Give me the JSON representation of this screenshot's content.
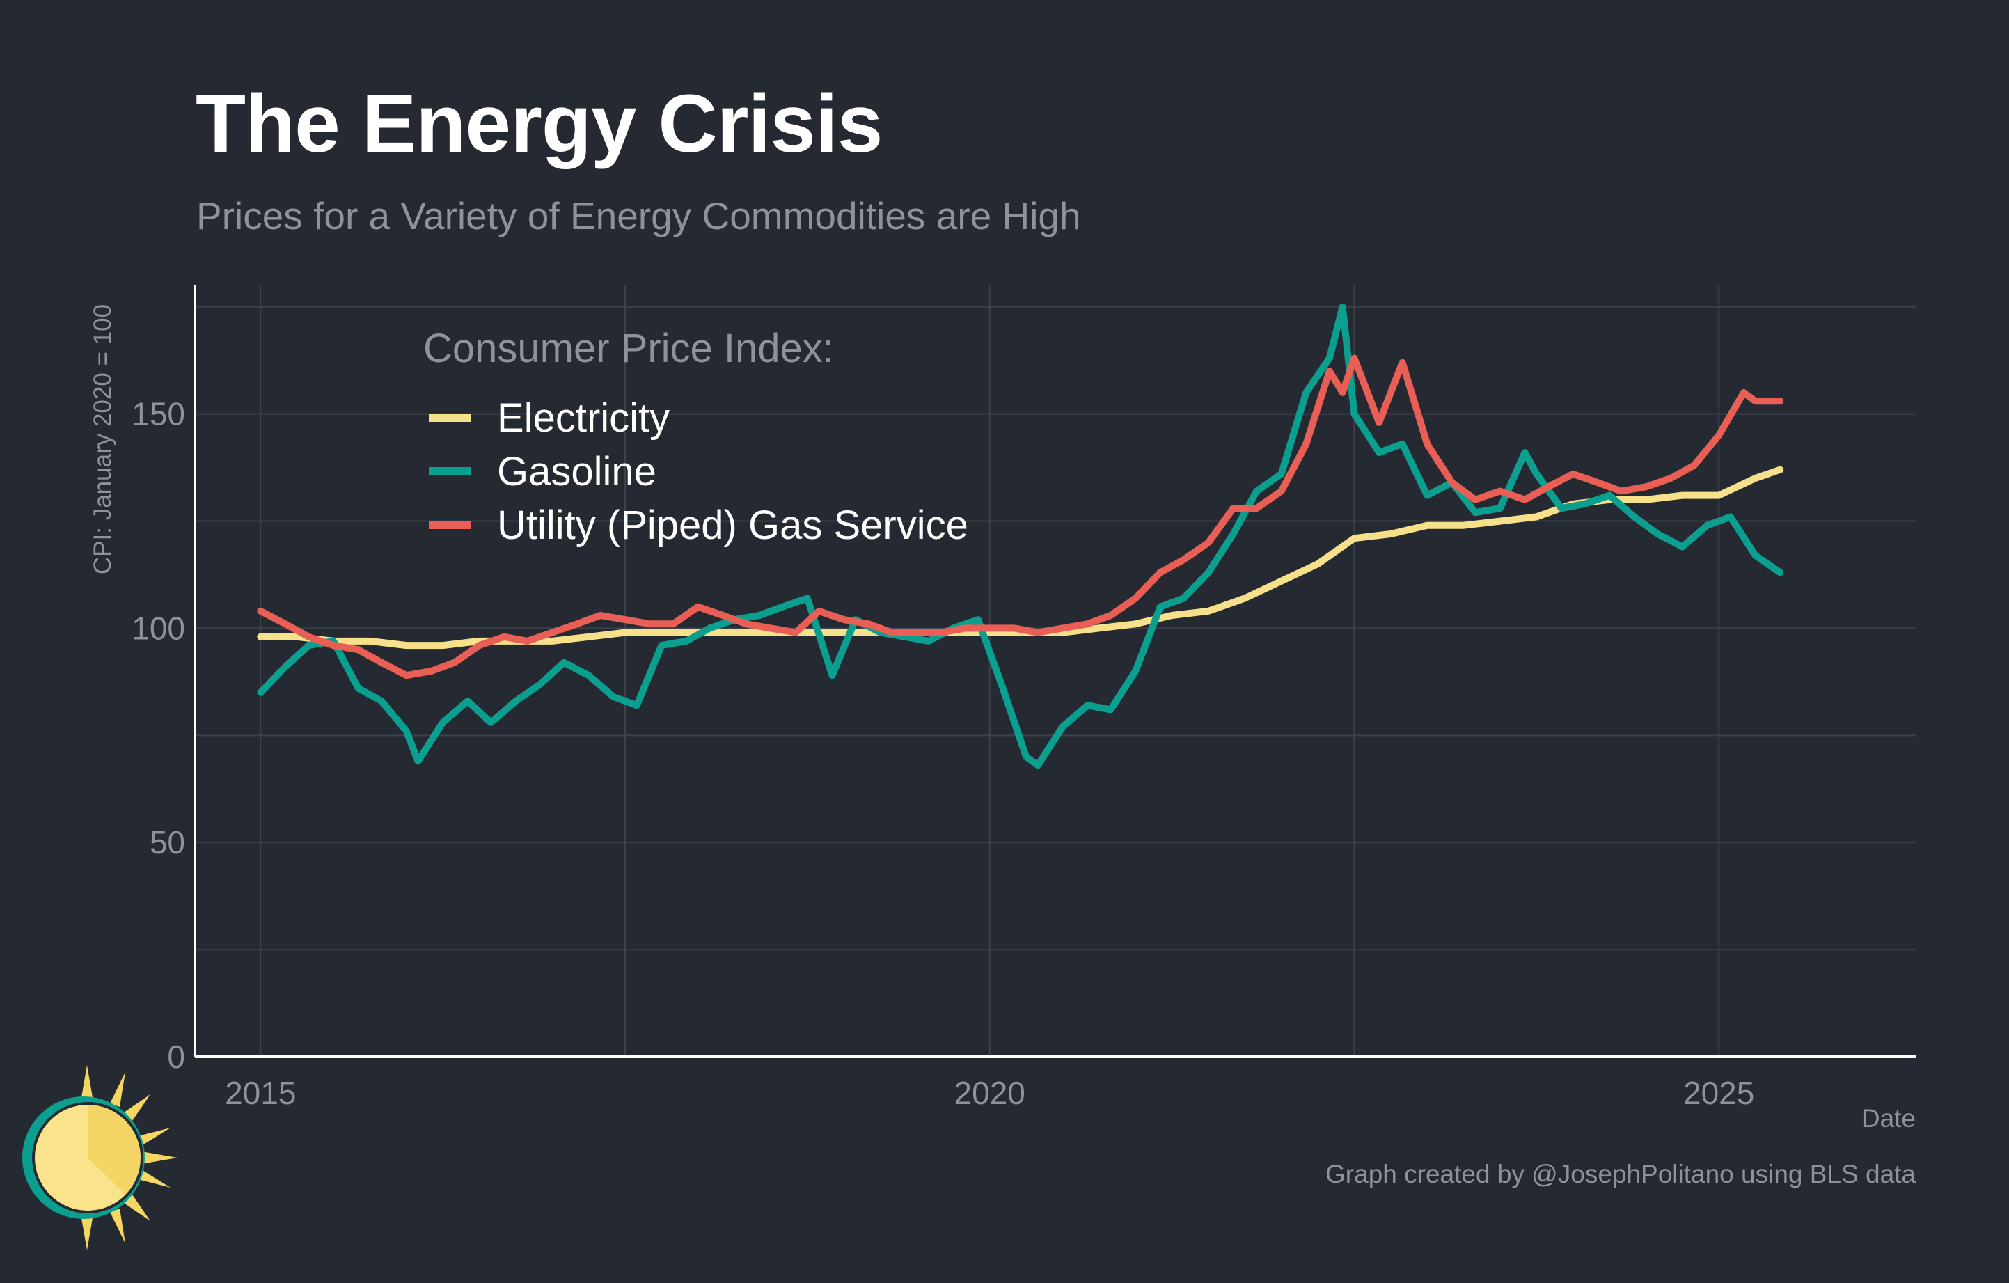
{
  "title": "The Energy Crisis",
  "subtitle": "Prices for a Variety of Energy Commodities are High",
  "credit": "Graph created by @JosephPolitano using BLS data",
  "colors": {
    "background": "#252932",
    "electricity": "#f7e08a",
    "gasoline": "#0a9f8e",
    "gas_service": "#ea5f55",
    "grid": "#3c414b",
    "axis_text": "#8e929a"
  },
  "chart_data": {
    "type": "line",
    "xlabel": "Date",
    "ylabel": "CPI: January 2020 = 100",
    "xlim": [
      2014.55,
      2026.35
    ],
    "ylim": [
      0,
      180
    ],
    "x_ticks": [
      2015,
      2020,
      2025
    ],
    "y_ticks": [
      0,
      50,
      100,
      150
    ],
    "grid": true,
    "legend_title": "Consumer Price Index:",
    "legend_position": "upper-left",
    "series": [
      {
        "name": "Electricity",
        "color": "#f7e08a",
        "x": [
          2015.0,
          2015.25,
          2015.5,
          2015.75,
          2016.0,
          2016.25,
          2016.5,
          2016.75,
          2017.0,
          2017.25,
          2017.5,
          2017.75,
          2018.0,
          2018.25,
          2018.5,
          2018.75,
          2019.0,
          2019.25,
          2019.5,
          2019.75,
          2020.0,
          2020.25,
          2020.5,
          2020.75,
          2021.0,
          2021.25,
          2021.5,
          2021.75,
          2022.0,
          2022.25,
          2022.5,
          2022.75,
          2023.0,
          2023.25,
          2023.5,
          2023.75,
          2024.0,
          2024.25,
          2024.5,
          2024.75,
          2025.0,
          2025.25,
          2025.42
        ],
        "y": [
          98,
          98,
          97,
          97,
          96,
          96,
          97,
          97,
          97,
          98,
          99,
          99,
          99,
          99,
          99,
          99,
          99,
          99,
          99,
          99,
          99,
          99,
          99,
          100,
          101,
          103,
          104,
          107,
          111,
          115,
          121,
          122,
          124,
          124,
          125,
          126,
          129,
          130,
          130,
          131,
          131,
          135,
          137
        ]
      },
      {
        "name": "Gasoline",
        "color": "#0a9f8e",
        "x": [
          2015.0,
          2015.17,
          2015.33,
          2015.5,
          2015.67,
          2015.83,
          2016.0,
          2016.08,
          2016.25,
          2016.42,
          2016.58,
          2016.75,
          2016.92,
          2017.08,
          2017.25,
          2017.42,
          2017.58,
          2017.75,
          2017.92,
          2018.08,
          2018.25,
          2018.42,
          2018.58,
          2018.75,
          2018.92,
          2019.08,
          2019.25,
          2019.42,
          2019.58,
          2019.75,
          2019.92,
          2020.08,
          2020.25,
          2020.33,
          2020.5,
          2020.67,
          2020.83,
          2021.0,
          2021.17,
          2021.33,
          2021.5,
          2021.67,
          2021.83,
          2022.0,
          2022.17,
          2022.33,
          2022.42,
          2022.5,
          2022.67,
          2022.83,
          2023.0,
          2023.17,
          2023.33,
          2023.5,
          2023.67,
          2023.75,
          2023.92,
          2024.08,
          2024.25,
          2024.42,
          2024.58,
          2024.75,
          2024.92,
          2025.08,
          2025.25,
          2025.42
        ],
        "y": [
          85,
          91,
          96,
          97,
          86,
          83,
          76,
          69,
          78,
          83,
          78,
          83,
          87,
          92,
          89,
          84,
          82,
          96,
          97,
          100,
          102,
          103,
          105,
          107,
          89,
          102,
          99,
          98,
          97,
          100,
          102,
          87,
          70,
          68,
          77,
          82,
          81,
          90,
          105,
          107,
          113,
          122,
          132,
          136,
          155,
          163,
          175,
          150,
          141,
          143,
          131,
          134,
          127,
          128,
          141,
          136,
          128,
          129,
          131,
          126,
          122,
          119,
          124,
          126,
          117,
          113
        ]
      },
      {
        "name": "Utility (Piped) Gas Service",
        "color": "#ea5f55",
        "x": [
          2015.0,
          2015.17,
          2015.33,
          2015.5,
          2015.67,
          2015.83,
          2016.0,
          2016.17,
          2016.33,
          2016.5,
          2016.67,
          2016.83,
          2017.0,
          2017.17,
          2017.33,
          2017.5,
          2017.67,
          2017.83,
          2018.0,
          2018.17,
          2018.33,
          2018.5,
          2018.67,
          2018.83,
          2019.0,
          2019.17,
          2019.33,
          2019.5,
          2019.67,
          2019.83,
          2020.0,
          2020.17,
          2020.33,
          2020.5,
          2020.67,
          2020.83,
          2021.0,
          2021.17,
          2021.33,
          2021.5,
          2021.67,
          2021.83,
          2022.0,
          2022.17,
          2022.33,
          2022.42,
          2022.5,
          2022.67,
          2022.83,
          2023.0,
          2023.17,
          2023.33,
          2023.5,
          2023.67,
          2023.83,
          2024.0,
          2024.17,
          2024.33,
          2024.5,
          2024.67,
          2024.83,
          2025.0,
          2025.17,
          2025.25,
          2025.42
        ],
        "y": [
          104,
          101,
          98,
          96,
          95,
          92,
          89,
          90,
          92,
          96,
          98,
          97,
          99,
          101,
          103,
          102,
          101,
          101,
          105,
          103,
          101,
          100,
          99,
          104,
          102,
          101,
          99,
          99,
          99,
          100,
          100,
          100,
          99,
          100,
          101,
          103,
          107,
          113,
          116,
          120,
          128,
          128,
          132,
          143,
          160,
          155,
          163,
          148,
          162,
          143,
          134,
          130,
          132,
          130,
          133,
          136,
          134,
          132,
          133,
          135,
          138,
          145,
          155,
          153,
          153
        ]
      }
    ]
  }
}
